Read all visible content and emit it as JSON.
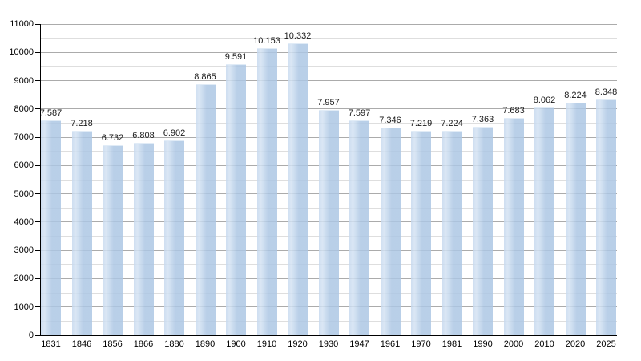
{
  "chart_data": {
    "type": "bar",
    "title": "",
    "xlabel": "",
    "ylabel": "",
    "categories": [
      "1831",
      "1846",
      "1856",
      "1866",
      "1880",
      "1890",
      "1900",
      "1910",
      "1920",
      "1930",
      "1947",
      "1961",
      "1970",
      "1981",
      "1990",
      "2000",
      "2010",
      "2020",
      "2025"
    ],
    "values": [
      7587,
      7218,
      6732,
      6808,
      6902,
      8865,
      9591,
      10153,
      10332,
      7957,
      7597,
      7346,
      7219,
      7224,
      7363,
      7683,
      8062,
      8224,
      8348
    ],
    "value_labels": [
      "7.587",
      "7.218",
      "6.732",
      "6.808",
      "6.902",
      "8.865",
      "9.591",
      "10.153",
      "10.332",
      "7.957",
      "7.597",
      "7.346",
      "7.219",
      "7.224",
      "7.363",
      "7.683",
      "8.062",
      "8.224",
      "8.348"
    ],
    "ylim": [
      0,
      11000
    ],
    "y_major_tick_interval": 1000,
    "y_minor_gridline_interval": 500,
    "y_tick_labels": [
      "0",
      "1000",
      "2000",
      "3000",
      "4000",
      "5000",
      "6000",
      "7000",
      "8000",
      "9000",
      "10000",
      "11000"
    ],
    "grid": "horizontal",
    "legend_position": "none",
    "colors": {
      "bar_fill": "#b9cfe8",
      "bar_fill_highlight": "#cfdef1",
      "gridline_major": "#ababab",
      "gridline_minor": "#dedede",
      "axis": "#000000",
      "text": "#000000",
      "background": "#ffffff"
    }
  }
}
